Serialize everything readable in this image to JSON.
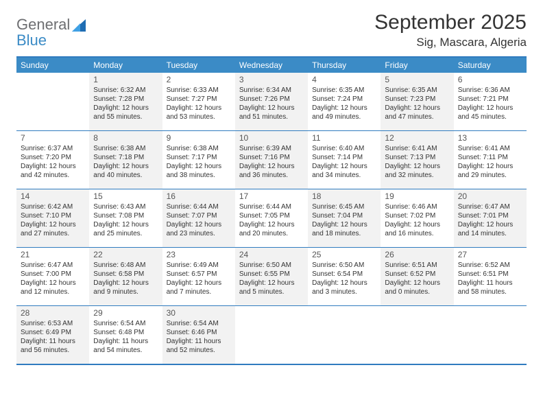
{
  "logo": {
    "word1": "General",
    "word2": "Blue"
  },
  "title": "September 2025",
  "location": "Sig, Mascara, Algeria",
  "colors": {
    "header_bg": "#3b8bc6",
    "header_text": "#ffffff",
    "rule": "#2f7bbf",
    "shade_bg": "#f2f2f2",
    "page_bg": "#ffffff",
    "logo_gray": "#6d6e71",
    "logo_blue": "#3b8bc6"
  },
  "dow": [
    "Sunday",
    "Monday",
    "Tuesday",
    "Wednesday",
    "Thursday",
    "Friday",
    "Saturday"
  ],
  "weeks": [
    [
      {
        "num": "",
        "sr": "",
        "ss": "",
        "dl": "",
        "shade": false
      },
      {
        "num": "1",
        "sr": "Sunrise: 6:32 AM",
        "ss": "Sunset: 7:28 PM",
        "dl": "Daylight: 12 hours and 55 minutes.",
        "shade": true
      },
      {
        "num": "2",
        "sr": "Sunrise: 6:33 AM",
        "ss": "Sunset: 7:27 PM",
        "dl": "Daylight: 12 hours and 53 minutes.",
        "shade": false
      },
      {
        "num": "3",
        "sr": "Sunrise: 6:34 AM",
        "ss": "Sunset: 7:26 PM",
        "dl": "Daylight: 12 hours and 51 minutes.",
        "shade": true
      },
      {
        "num": "4",
        "sr": "Sunrise: 6:35 AM",
        "ss": "Sunset: 7:24 PM",
        "dl": "Daylight: 12 hours and 49 minutes.",
        "shade": false
      },
      {
        "num": "5",
        "sr": "Sunrise: 6:35 AM",
        "ss": "Sunset: 7:23 PM",
        "dl": "Daylight: 12 hours and 47 minutes.",
        "shade": true
      },
      {
        "num": "6",
        "sr": "Sunrise: 6:36 AM",
        "ss": "Sunset: 7:21 PM",
        "dl": "Daylight: 12 hours and 45 minutes.",
        "shade": false
      }
    ],
    [
      {
        "num": "7",
        "sr": "Sunrise: 6:37 AM",
        "ss": "Sunset: 7:20 PM",
        "dl": "Daylight: 12 hours and 42 minutes.",
        "shade": false
      },
      {
        "num": "8",
        "sr": "Sunrise: 6:38 AM",
        "ss": "Sunset: 7:18 PM",
        "dl": "Daylight: 12 hours and 40 minutes.",
        "shade": true
      },
      {
        "num": "9",
        "sr": "Sunrise: 6:38 AM",
        "ss": "Sunset: 7:17 PM",
        "dl": "Daylight: 12 hours and 38 minutes.",
        "shade": false
      },
      {
        "num": "10",
        "sr": "Sunrise: 6:39 AM",
        "ss": "Sunset: 7:16 PM",
        "dl": "Daylight: 12 hours and 36 minutes.",
        "shade": true
      },
      {
        "num": "11",
        "sr": "Sunrise: 6:40 AM",
        "ss": "Sunset: 7:14 PM",
        "dl": "Daylight: 12 hours and 34 minutes.",
        "shade": false
      },
      {
        "num": "12",
        "sr": "Sunrise: 6:41 AM",
        "ss": "Sunset: 7:13 PM",
        "dl": "Daylight: 12 hours and 32 minutes.",
        "shade": true
      },
      {
        "num": "13",
        "sr": "Sunrise: 6:41 AM",
        "ss": "Sunset: 7:11 PM",
        "dl": "Daylight: 12 hours and 29 minutes.",
        "shade": false
      }
    ],
    [
      {
        "num": "14",
        "sr": "Sunrise: 6:42 AM",
        "ss": "Sunset: 7:10 PM",
        "dl": "Daylight: 12 hours and 27 minutes.",
        "shade": true
      },
      {
        "num": "15",
        "sr": "Sunrise: 6:43 AM",
        "ss": "Sunset: 7:08 PM",
        "dl": "Daylight: 12 hours and 25 minutes.",
        "shade": false
      },
      {
        "num": "16",
        "sr": "Sunrise: 6:44 AM",
        "ss": "Sunset: 7:07 PM",
        "dl": "Daylight: 12 hours and 23 minutes.",
        "shade": true
      },
      {
        "num": "17",
        "sr": "Sunrise: 6:44 AM",
        "ss": "Sunset: 7:05 PM",
        "dl": "Daylight: 12 hours and 20 minutes.",
        "shade": false
      },
      {
        "num": "18",
        "sr": "Sunrise: 6:45 AM",
        "ss": "Sunset: 7:04 PM",
        "dl": "Daylight: 12 hours and 18 minutes.",
        "shade": true
      },
      {
        "num": "19",
        "sr": "Sunrise: 6:46 AM",
        "ss": "Sunset: 7:02 PM",
        "dl": "Daylight: 12 hours and 16 minutes.",
        "shade": false
      },
      {
        "num": "20",
        "sr": "Sunrise: 6:47 AM",
        "ss": "Sunset: 7:01 PM",
        "dl": "Daylight: 12 hours and 14 minutes.",
        "shade": true
      }
    ],
    [
      {
        "num": "21",
        "sr": "Sunrise: 6:47 AM",
        "ss": "Sunset: 7:00 PM",
        "dl": "Daylight: 12 hours and 12 minutes.",
        "shade": false
      },
      {
        "num": "22",
        "sr": "Sunrise: 6:48 AM",
        "ss": "Sunset: 6:58 PM",
        "dl": "Daylight: 12 hours and 9 minutes.",
        "shade": true
      },
      {
        "num": "23",
        "sr": "Sunrise: 6:49 AM",
        "ss": "Sunset: 6:57 PM",
        "dl": "Daylight: 12 hours and 7 minutes.",
        "shade": false
      },
      {
        "num": "24",
        "sr": "Sunrise: 6:50 AM",
        "ss": "Sunset: 6:55 PM",
        "dl": "Daylight: 12 hours and 5 minutes.",
        "shade": true
      },
      {
        "num": "25",
        "sr": "Sunrise: 6:50 AM",
        "ss": "Sunset: 6:54 PM",
        "dl": "Daylight: 12 hours and 3 minutes.",
        "shade": false
      },
      {
        "num": "26",
        "sr": "Sunrise: 6:51 AM",
        "ss": "Sunset: 6:52 PM",
        "dl": "Daylight: 12 hours and 0 minutes.",
        "shade": true
      },
      {
        "num": "27",
        "sr": "Sunrise: 6:52 AM",
        "ss": "Sunset: 6:51 PM",
        "dl": "Daylight: 11 hours and 58 minutes.",
        "shade": false
      }
    ],
    [
      {
        "num": "28",
        "sr": "Sunrise: 6:53 AM",
        "ss": "Sunset: 6:49 PM",
        "dl": "Daylight: 11 hours and 56 minutes.",
        "shade": true
      },
      {
        "num": "29",
        "sr": "Sunrise: 6:54 AM",
        "ss": "Sunset: 6:48 PM",
        "dl": "Daylight: 11 hours and 54 minutes.",
        "shade": false
      },
      {
        "num": "30",
        "sr": "Sunrise: 6:54 AM",
        "ss": "Sunset: 6:46 PM",
        "dl": "Daylight: 11 hours and 52 minutes.",
        "shade": true
      },
      {
        "num": "",
        "sr": "",
        "ss": "",
        "dl": "",
        "shade": false
      },
      {
        "num": "",
        "sr": "",
        "ss": "",
        "dl": "",
        "shade": false
      },
      {
        "num": "",
        "sr": "",
        "ss": "",
        "dl": "",
        "shade": false
      },
      {
        "num": "",
        "sr": "",
        "ss": "",
        "dl": "",
        "shade": false
      }
    ]
  ]
}
